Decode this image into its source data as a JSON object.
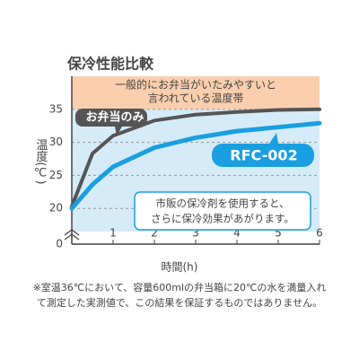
{
  "chart_data": {
    "type": "line",
    "title": "保冷性能比較",
    "x_label": "時間(h)",
    "y_label": "温度(℃)",
    "x": [
      0,
      0.5,
      1,
      2,
      3,
      4,
      5,
      6
    ],
    "series": [
      {
        "name": "お弁当のみ",
        "color": "#555555",
        "values": [
          20.3,
          28.3,
          31.0,
          33.3,
          34.2,
          34.6,
          34.9,
          35.0
        ]
      },
      {
        "name": "RFC-002",
        "color": "#1a9fe0",
        "values": [
          20.0,
          23.6,
          26.3,
          29.2,
          30.7,
          31.7,
          32.3,
          32.9
        ]
      }
    ],
    "xlim": [
      0,
      6
    ],
    "xticks": [
      0,
      1,
      2,
      3,
      4,
      5,
      6
    ],
    "ylim": [
      0,
      40
    ],
    "y_break": 16.5,
    "yticks": [
      0,
      20,
      25,
      30,
      35
    ],
    "grid": true,
    "band_label": "一般的にお弁当がいたみやすいと言われている温度帯",
    "band_label_lines": [
      "一般的にお弁当がいたみやすいと",
      "言われている温度帯"
    ],
    "annotation": [
      "市販の保冷剤を使用すると、",
      "さらに保冷効果があがります。"
    ],
    "footnote": [
      "※室温36℃において、容量600mlの弁当箱に20℃の水を満量入れ",
      "て測定した実測値で、この結果を保証するものではありません。"
    ]
  }
}
